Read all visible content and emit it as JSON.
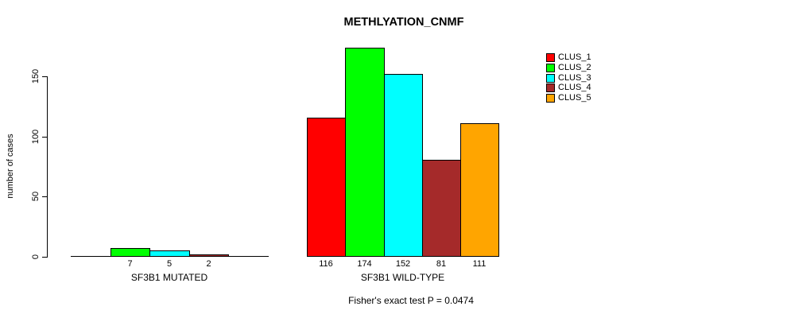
{
  "chart_data": {
    "type": "bar",
    "title": "METHLYATION_CNMF",
    "ylabel": "number of cases",
    "footnote": "Fisher's exact test P = 0.0474",
    "ylim": [
      0,
      175
    ],
    "yticks": [
      0,
      50,
      100,
      150
    ],
    "grid": false,
    "legend_position": "right",
    "categories": [
      "SF3B1 MUTATED",
      "SF3B1 WILD-TYPE"
    ],
    "series": [
      {
        "name": "CLUS_1",
        "color": "#FF0000",
        "values": [
          0,
          116
        ]
      },
      {
        "name": "CLUS_2",
        "color": "#00FF00",
        "values": [
          7,
          174
        ]
      },
      {
        "name": "CLUS_3",
        "color": "#00FFFF",
        "values": [
          5,
          152
        ]
      },
      {
        "name": "CLUS_4",
        "color": "#A52A2A",
        "values": [
          2,
          81
        ]
      },
      {
        "name": "CLUS_5",
        "color": "#FFA500",
        "values": [
          0,
          111
        ]
      }
    ],
    "bar_value_labels": [
      [
        "",
        "7",
        "5",
        "2",
        ""
      ],
      [
        "116",
        "174",
        "152",
        "81",
        "111"
      ]
    ]
  }
}
